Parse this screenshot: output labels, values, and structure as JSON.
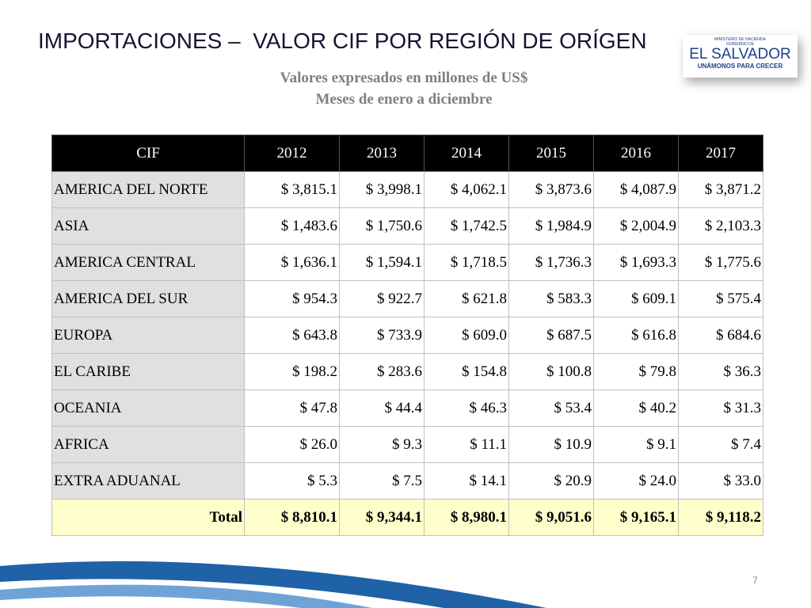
{
  "header": {
    "title": "IMPORTACIONES –  VALOR CIF POR REGIÓN DE ORÍGEN",
    "subtitle": [
      "Valores expresados en millones de US$",
      "Meses de enero a diciembre"
    ]
  },
  "logo": {
    "ministry": "MINISTERIO DE HACIENDA",
    "government": "GOBIERNO DE",
    "country": "EL SALVADOR",
    "slogan": "UNÁMONOS PARA CRECER"
  },
  "table": {
    "columns": [
      "CIF",
      "2012",
      "2013",
      "2014",
      "2015",
      "2016",
      "2017"
    ],
    "rows": [
      [
        "AMERICA DEL NORTE",
        "$ 3,815.1",
        "$ 3,998.1",
        "$ 4,062.1",
        "$ 3,873.6",
        "$ 4,087.9",
        "$ 3,871.2"
      ],
      [
        "ASIA",
        "$ 1,483.6",
        "$ 1,750.6",
        "$ 1,742.5",
        "$ 1,984.9",
        "$ 2,004.9",
        "$ 2,103.3"
      ],
      [
        "AMERICA CENTRAL",
        "$ 1,636.1",
        "$ 1,594.1",
        "$ 1,718.5",
        "$ 1,736.3",
        "$ 1,693.3",
        "$ 1,775.6"
      ],
      [
        "AMERICA DEL SUR",
        "$ 954.3",
        "$ 922.7",
        "$ 621.8",
        "$ 583.3",
        "$ 609.1",
        "$ 575.4"
      ],
      [
        "EUROPA",
        "$ 643.8",
        "$ 733.9",
        "$ 609.0",
        "$ 687.5",
        "$ 616.8",
        "$ 684.6"
      ],
      [
        "EL CARIBE",
        "$ 198.2",
        "$ 283.6",
        "$ 154.8",
        "$ 100.8",
        "$ 79.8",
        "$ 36.3"
      ],
      [
        "OCEANIA",
        "$ 47.8",
        "$ 44.4",
        "$ 46.3",
        "$ 53.4",
        "$ 40.2",
        "$ 31.3"
      ],
      [
        "AFRICA",
        "$ 26.0",
        "$ 9.3",
        "$ 11.1",
        "$ 10.9",
        "$ 9.1",
        "$ 7.4"
      ],
      [
        "EXTRA ADUANAL",
        "$ 5.3",
        "$ 7.5",
        "$ 14.1",
        "$ 20.9",
        "$ 24.0",
        "$ 33.0"
      ]
    ],
    "total": [
      "Total",
      "$ 8,810.1",
      "$ 9,344.1",
      "$ 8,980.1",
      "$ 9,051.6",
      "$ 9,165.1",
      "$ 9,118.2"
    ]
  },
  "footer": {
    "page": "7"
  }
}
